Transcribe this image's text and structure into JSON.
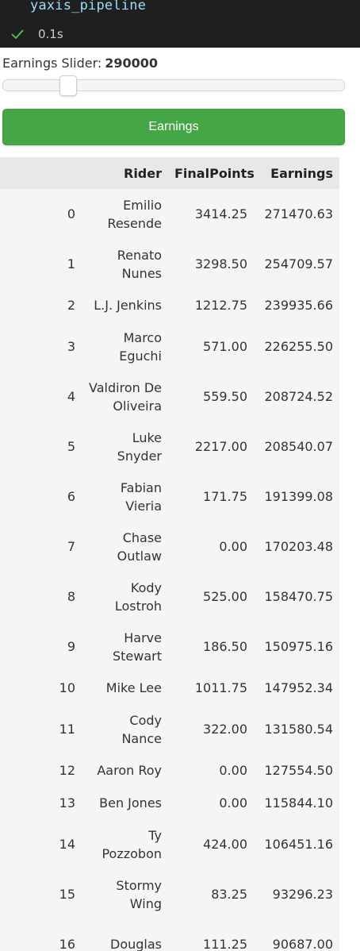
{
  "cell": {
    "code": "yaxis_pipeline",
    "exec_time": "0.1s"
  },
  "slider": {
    "label": "Earnings Slider:",
    "value": "290000",
    "fraction": 0.19
  },
  "button": {
    "label": "Earnings"
  },
  "table": {
    "columns": [
      "",
      "Rider",
      "FinalPoints",
      "Earnings"
    ],
    "rows": [
      {
        "index": "0",
        "rider": [
          "Emilio",
          "Resende"
        ],
        "points": "3414.25",
        "earnings": "271470.63"
      },
      {
        "index": "1",
        "rider": [
          "Renato",
          "Nunes"
        ],
        "points": "3298.50",
        "earnings": "254709.57"
      },
      {
        "index": "2",
        "rider": [
          "L.J. Jenkins"
        ],
        "points": "1212.75",
        "earnings": "239935.66"
      },
      {
        "index": "3",
        "rider": [
          "Marco",
          "Eguchi"
        ],
        "points": "571.00",
        "earnings": "226255.50"
      },
      {
        "index": "4",
        "rider": [
          "Valdiron De",
          "Oliveira"
        ],
        "points": "559.50",
        "earnings": "208724.52"
      },
      {
        "index": "5",
        "rider": [
          "Luke",
          "Snyder"
        ],
        "points": "2217.00",
        "earnings": "208540.07"
      },
      {
        "index": "6",
        "rider": [
          "Fabian",
          "Vieria"
        ],
        "points": "171.75",
        "earnings": "191399.08"
      },
      {
        "index": "7",
        "rider": [
          "Chase",
          "Outlaw"
        ],
        "points": "0.00",
        "earnings": "170203.48"
      },
      {
        "index": "8",
        "rider": [
          "Kody",
          "Lostroh"
        ],
        "points": "525.00",
        "earnings": "158470.75"
      },
      {
        "index": "9",
        "rider": [
          "Harve",
          "Stewart"
        ],
        "points": "186.50",
        "earnings": "150975.16"
      },
      {
        "index": "10",
        "rider": [
          "Mike Lee"
        ],
        "points": "1011.75",
        "earnings": "147952.34"
      },
      {
        "index": "11",
        "rider": [
          "Cody",
          "Nance"
        ],
        "points": "322.00",
        "earnings": "131580.54"
      },
      {
        "index": "12",
        "rider": [
          "Aaron Roy"
        ],
        "points": "0.00",
        "earnings": "127554.50"
      },
      {
        "index": "13",
        "rider": [
          "Ben Jones"
        ],
        "points": "0.00",
        "earnings": "115844.10"
      },
      {
        "index": "14",
        "rider": [
          "Ty",
          "Pozzobon"
        ],
        "points": "424.00",
        "earnings": "106451.16"
      },
      {
        "index": "15",
        "rider": [
          "Stormy",
          "Wing"
        ],
        "points": "83.25",
        "earnings": "93296.23"
      },
      {
        "index": "16",
        "rider": [
          "Douglas",
          ""
        ],
        "points": "111.25",
        "earnings": "90687.00"
      }
    ]
  },
  "colors": {
    "cell_bg": "#1f1f1f",
    "code_text": "#9cdcfe",
    "check": "#4ec94e",
    "button_bg": "#45a645",
    "table_bg": "#f5f5f5",
    "header_bg": "#e8e8e8"
  },
  "icons": {
    "status": "check-icon"
  }
}
